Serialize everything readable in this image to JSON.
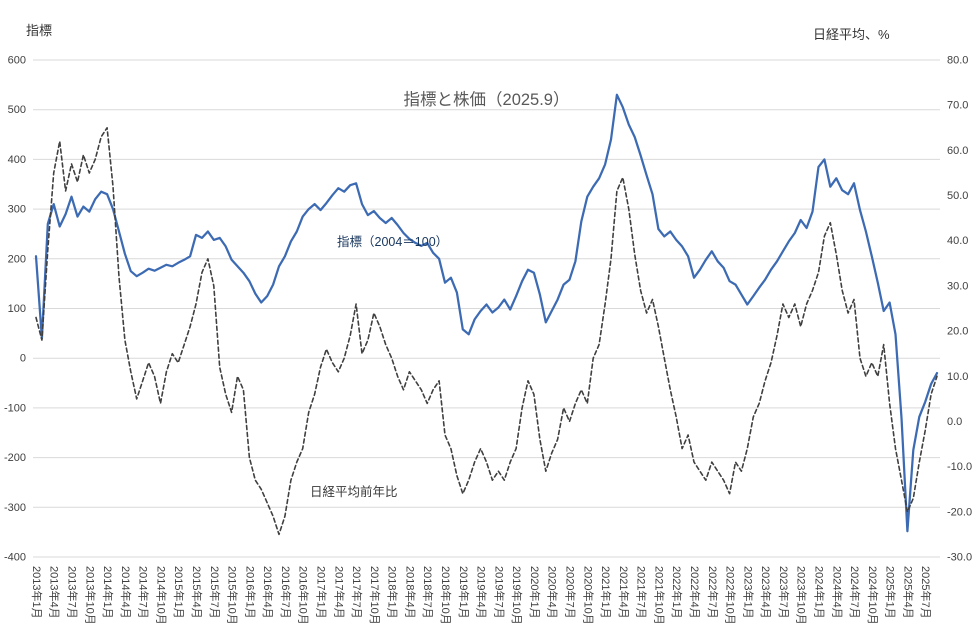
{
  "title": "指標と株価（2025.9）",
  "left_axis_title": "指標",
  "right_axis_title": "日経平均、%",
  "annotations": {
    "series1": "指標（2004＝100）",
    "series2": "日経平均前年比"
  },
  "colors": {
    "indicator_line": "#3d6bb3",
    "nikkei_line": "#404040",
    "grid": "#d9d9d9",
    "axis_text": "#404040",
    "title_text": "#595959"
  },
  "chart_data": {
    "type": "line",
    "title": "指標と株価（2025.9）",
    "x_start": "2013年1月",
    "x_end": "2025年9月",
    "x_frequency": "monthly",
    "grid": "horizontal",
    "left_axis": {
      "title": "指標",
      "min": -400,
      "max": 600,
      "tick_step": 100
    },
    "right_axis": {
      "title": "日経平均、%",
      "min": -30,
      "max": 80,
      "tick_step": 10
    },
    "x_tick_labels": [
      "2013年1月",
      "2013年4月",
      "2013年7月",
      "2013年10月",
      "2014年1月",
      "2014年4月",
      "2014年7月",
      "2014年10月",
      "2015年1月",
      "2015年4月",
      "2015年7月",
      "2015年10月",
      "2016年1月",
      "2016年4月",
      "2016年7月",
      "2016年10月",
      "2017年1月",
      "2017年4月",
      "2017年7月",
      "2017年10月",
      "2018年1月",
      "2018年4月",
      "2018年7月",
      "2018年10月",
      "2019年1月",
      "2019年4月",
      "2019年7月",
      "2019年10月",
      "2020年1月",
      "2020年4月",
      "2020年7月",
      "2020年10月",
      "2021年1月",
      "2021年4月",
      "2021年7月",
      "2021年10月",
      "2022年1月",
      "2022年4月",
      "2022年7月",
      "2022年10月",
      "2023年1月",
      "2023年4月",
      "2023年7月",
      "2023年10月",
      "2024年1月",
      "2024年4月",
      "2024年7月",
      "2024年10月",
      "2025年1月",
      "2025年4月",
      "2025年7月"
    ],
    "series": [
      {
        "name": "指標（2004＝100）",
        "axis": "left",
        "line_style": "solid",
        "dash": "",
        "color": "#3d6bb3",
        "width": 2.25,
        "data_name": "indicator-series-line",
        "values": [
          205,
          40,
          270,
          310,
          265,
          290,
          325,
          285,
          305,
          295,
          320,
          335,
          330,
          300,
          255,
          210,
          175,
          165,
          172,
          180,
          176,
          182,
          188,
          185,
          192,
          198,
          205,
          248,
          242,
          255,
          238,
          242,
          225,
          198,
          185,
          172,
          155,
          130,
          112,
          125,
          148,
          185,
          205,
          235,
          255,
          285,
          300,
          310,
          298,
          312,
          328,
          342,
          335,
          348,
          352,
          310,
          288,
          296,
          282,
          272,
          282,
          268,
          252,
          240,
          232,
          226,
          232,
          212,
          200,
          152,
          162,
          132,
          58,
          48,
          78,
          95,
          108,
          92,
          102,
          118,
          98,
          125,
          155,
          178,
          172,
          128,
          72,
          95,
          118,
          148,
          158,
          195,
          275,
          325,
          345,
          362,
          390,
          440,
          530,
          505,
          470,
          445,
          408,
          368,
          330,
          260,
          245,
          255,
          238,
          225,
          205,
          162,
          178,
          198,
          215,
          195,
          182,
          155,
          148,
          128,
          108,
          125,
          142,
          158,
          178,
          195,
          215,
          235,
          252,
          278,
          262,
          295,
          385,
          400,
          345,
          362,
          338,
          330,
          352,
          298,
          255,
          205,
          152,
          95,
          112,
          48,
          -120,
          -348,
          -185,
          -118,
          -88,
          -52,
          -30
        ]
      },
      {
        "name": "日経平均前年比",
        "axis": "right",
        "line_style": "dashed",
        "dash": "4 3",
        "color": "#404040",
        "width": 1.6,
        "data_name": "nikkei-series-line",
        "values": [
          23,
          18,
          38,
          55,
          62,
          51,
          57,
          53,
          59,
          55,
          58,
          63,
          65,
          52,
          32,
          18,
          11,
          5,
          9,
          13,
          10,
          4,
          11,
          15,
          13,
          17,
          21,
          26,
          33,
          36,
          30,
          12,
          6,
          2,
          10,
          7,
          -8,
          -13,
          -15,
          -18,
          -21,
          -25,
          -21,
          -13,
          -9,
          -6,
          2,
          6,
          12,
          16,
          13,
          11,
          14,
          19,
          26,
          15,
          18,
          24,
          21,
          17,
          14,
          10,
          7,
          11,
          9,
          7,
          4,
          7,
          9,
          -3,
          -6,
          -12,
          -16,
          -13,
          -9,
          -6,
          -9,
          -13,
          -11,
          -13,
          -9,
          -6,
          3,
          9,
          6,
          -4,
          -11,
          -7,
          -4,
          3,
          0,
          4,
          7,
          4,
          14,
          17,
          26,
          36,
          51,
          54,
          47,
          37,
          29,
          24,
          27,
          21,
          14,
          7,
          1,
          -6,
          -3,
          -9,
          -11,
          -13,
          -9,
          -11,
          -13,
          -16,
          -9,
          -11,
          -6,
          1,
          4,
          9,
          13,
          19,
          26,
          23,
          26,
          21,
          26,
          29,
          33,
          41,
          44,
          37,
          29,
          24,
          27,
          14,
          10,
          13,
          10,
          17,
          4,
          -6,
          -13,
          -20,
          -17,
          -9,
          -2,
          6,
          10
        ]
      }
    ]
  }
}
